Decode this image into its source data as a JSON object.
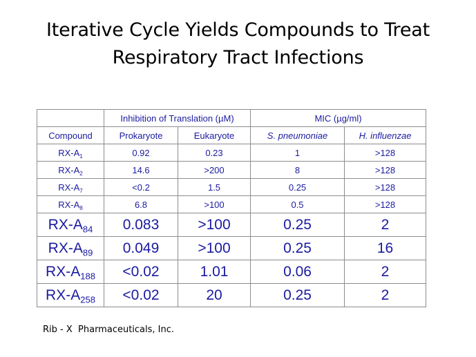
{
  "title": {
    "line1": "Iterative Cycle Yields Compounds to Treat",
    "line2": "Respiratory Tract Infections"
  },
  "table": {
    "group_headers": {
      "inhibition": "Inhibition of Translation (µM)",
      "mic": "MIC (µg/ml)"
    },
    "column_headers": [
      "Compound",
      "Prokaryote",
      "Eukaryote",
      "S. pneumoniae",
      "H. influenzae"
    ],
    "rows": [
      {
        "compound": "RX-A",
        "sub": "1",
        "prokaryote": "0.92",
        "eukaryote": "0.23",
        "s_pneumoniae": "1",
        "h_influenzae": ">128"
      },
      {
        "compound": "RX-A",
        "sub": "2",
        "prokaryote": "14.6",
        "eukaryote": ">200",
        "s_pneumoniae": "8",
        "h_influenzae": ">128"
      },
      {
        "compound": "RX-A",
        "sub": "7",
        "prokaryote": "<0.2",
        "eukaryote": "1.5",
        "s_pneumoniae": "0.25",
        "h_influenzae": ">128"
      },
      {
        "compound": "RX-A",
        "sub": "8",
        "prokaryote": "6.8",
        "eukaryote": ">100",
        "s_pneumoniae": "0.5",
        "h_influenzae": ">128"
      },
      {
        "compound": "RX-A",
        "sub": "84",
        "prokaryote": "0.083",
        "eukaryote": ">100",
        "s_pneumoniae": "0.25",
        "h_influenzae": "2"
      },
      {
        "compound": "RX-A",
        "sub": "89",
        "prokaryote": "0.049",
        "eukaryote": ">100",
        "s_pneumoniae": "0.25",
        "h_influenzae": "16"
      },
      {
        "compound": "RX-A",
        "sub": "188",
        "prokaryote": "<0.02",
        "eukaryote": "1.01",
        "s_pneumoniae": "0.06",
        "h_influenzae": "2"
      },
      {
        "compound": "RX-A",
        "sub": "258",
        "prokaryote": "<0.02",
        "eukaryote": "20",
        "s_pneumoniae": "0.25",
        "h_influenzae": "2"
      }
    ]
  },
  "footer": "Rib - X  Pharmaceuticals, Inc.",
  "colors": {
    "table_text": "#1a1aa0",
    "grid_line": "#8c8c8c",
    "title_text": "#000000"
  }
}
